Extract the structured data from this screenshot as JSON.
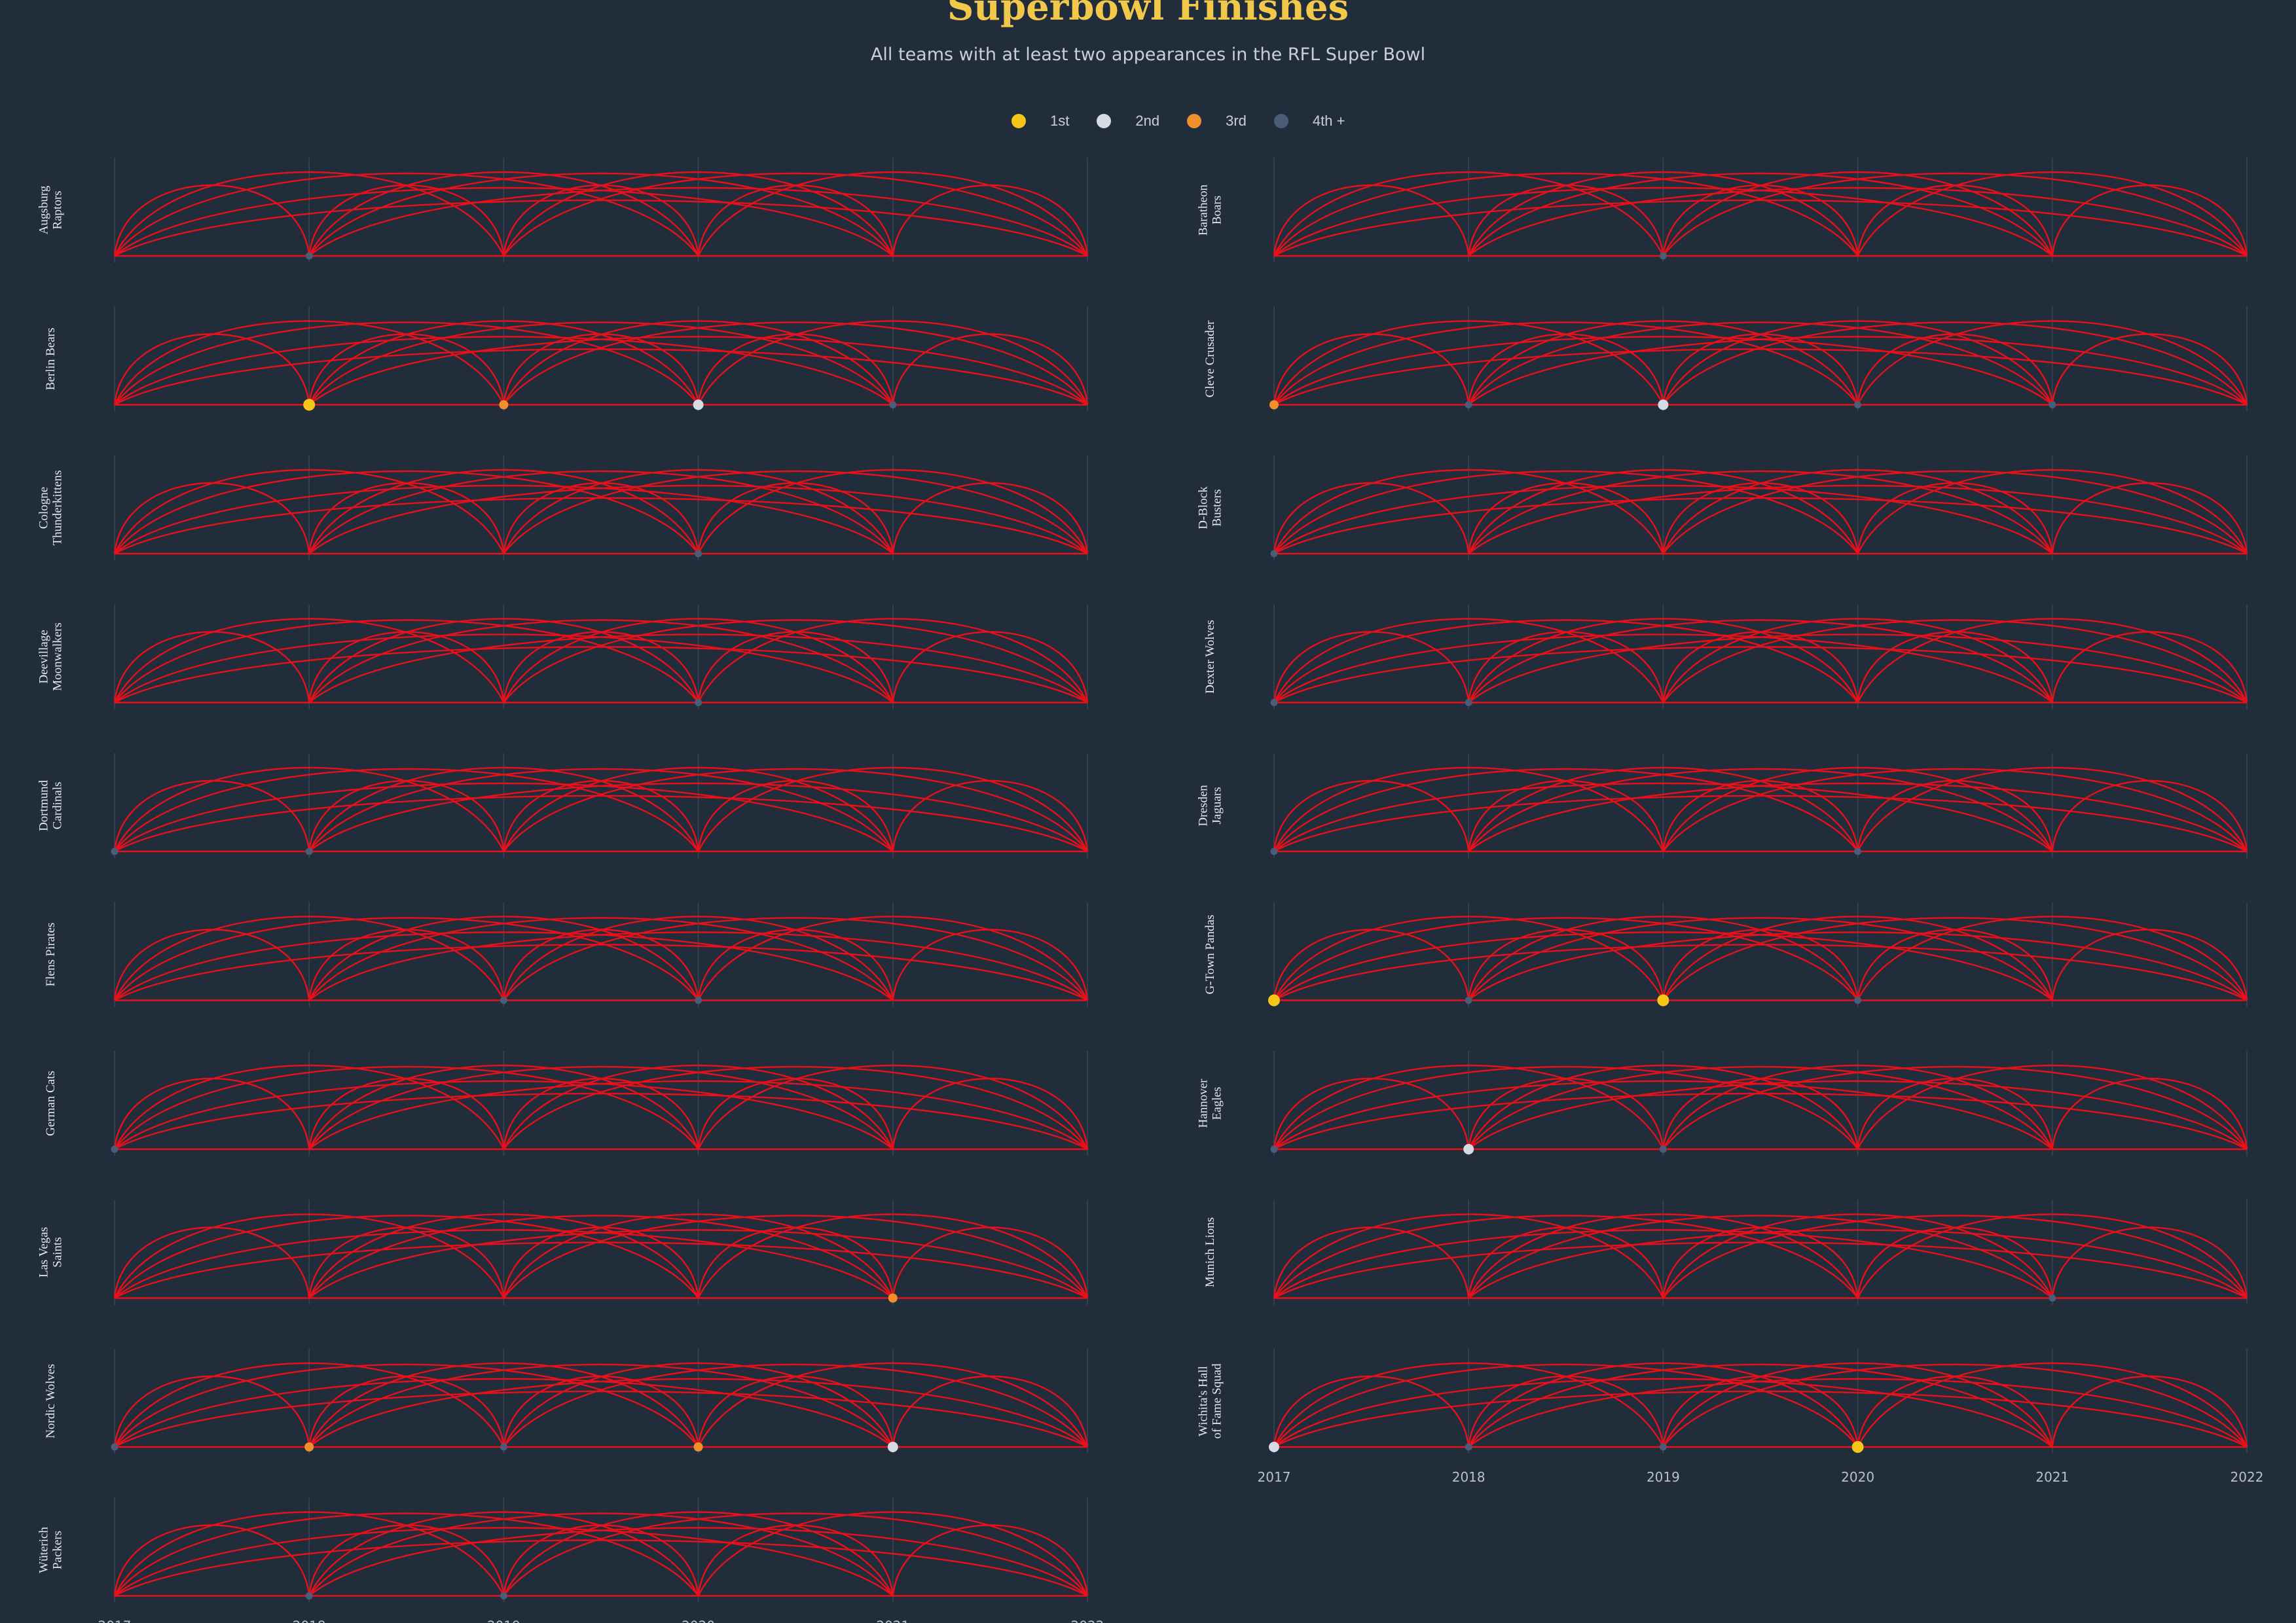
{
  "title": "Superbowl Finishes",
  "subtitle": "All teams with at least two appearances in the RFL Super Bowl",
  "legend": [
    {
      "label": "1st",
      "color": "#f5c518"
    },
    {
      "label": "2nd",
      "color": "#d6dae2"
    },
    {
      "label": "3rd",
      "color": "#f0902a"
    },
    {
      "label": "4th +",
      "color": "#4a5d78"
    }
  ],
  "colors": {
    "background": "#222d3b",
    "arc": "#e8101a",
    "gridline": "#3a4656"
  },
  "chart_data": {
    "type": "arc-timeline",
    "years": [
      "2017",
      "2018",
      "2019",
      "2020",
      "2021",
      "2022"
    ],
    "placement_legend": [
      "1st",
      "2nd",
      "3rd",
      "4th +"
    ],
    "teams": [
      {
        "name": "Augsburg\nRaptors",
        "finishes": {
          "2018": "4th +"
        }
      },
      {
        "name": "Baratheon\nBoars",
        "finishes": {
          "2019": "4th +"
        }
      },
      {
        "name": "Berlin Bears",
        "finishes": {
          "2018": "1st",
          "2019": "3rd",
          "2020": "2nd",
          "2021": "4th +"
        }
      },
      {
        "name": "Cleve Crusader",
        "finishes": {
          "2017": "3rd",
          "2018": "4th +",
          "2019": "2nd",
          "2020": "4th +",
          "2021": "4th +"
        }
      },
      {
        "name": "Cologne\nThunderkittens",
        "finishes": {
          "2020": "4th +"
        }
      },
      {
        "name": "D-Block\nBusters",
        "finishes": {
          "2017": "4th +"
        }
      },
      {
        "name": "Deevillage\nMoonwalkers",
        "finishes": {
          "2020": "4th +"
        }
      },
      {
        "name": "Dexter Wolves",
        "finishes": {
          "2017": "4th +",
          "2018": "4th +"
        }
      },
      {
        "name": "Dortmund\nCardinals",
        "finishes": {
          "2017": "4th +",
          "2018": "4th +"
        }
      },
      {
        "name": "Dresden\nJaguars",
        "finishes": {
          "2017": "4th +",
          "2020": "4th +"
        }
      },
      {
        "name": "Flens Pirates",
        "finishes": {
          "2019": "4th +",
          "2020": "4th +"
        }
      },
      {
        "name": "G-Town Pandas",
        "finishes": {
          "2017": "1st",
          "2018": "4th +",
          "2019": "1st",
          "2020": "4th +"
        }
      },
      {
        "name": "German Cats",
        "finishes": {
          "2017": "4th +"
        }
      },
      {
        "name": "Hannover\nEagles",
        "finishes": {
          "2017": "4th +",
          "2018": "2nd",
          "2019": "4th +"
        }
      },
      {
        "name": "Las Vegas\nSaints",
        "finishes": {
          "2021": "3rd"
        }
      },
      {
        "name": "Munich Lions",
        "finishes": {
          "2021": "4th +"
        }
      },
      {
        "name": "Nordic Wolves",
        "finishes": {
          "2017": "4th +",
          "2018": "3rd",
          "2019": "4th +",
          "2020": "3rd",
          "2021": "2nd"
        }
      },
      {
        "name": "Wichita's Hall\nof Fame Squad",
        "finishes": {
          "2017": "2nd",
          "2018": "4th +",
          "2019": "4th +",
          "2020": "1st"
        }
      },
      {
        "name": "Wüterich\nPackers",
        "finishes": {
          "2018": "4th +",
          "2019": "4th +"
        }
      }
    ]
  }
}
